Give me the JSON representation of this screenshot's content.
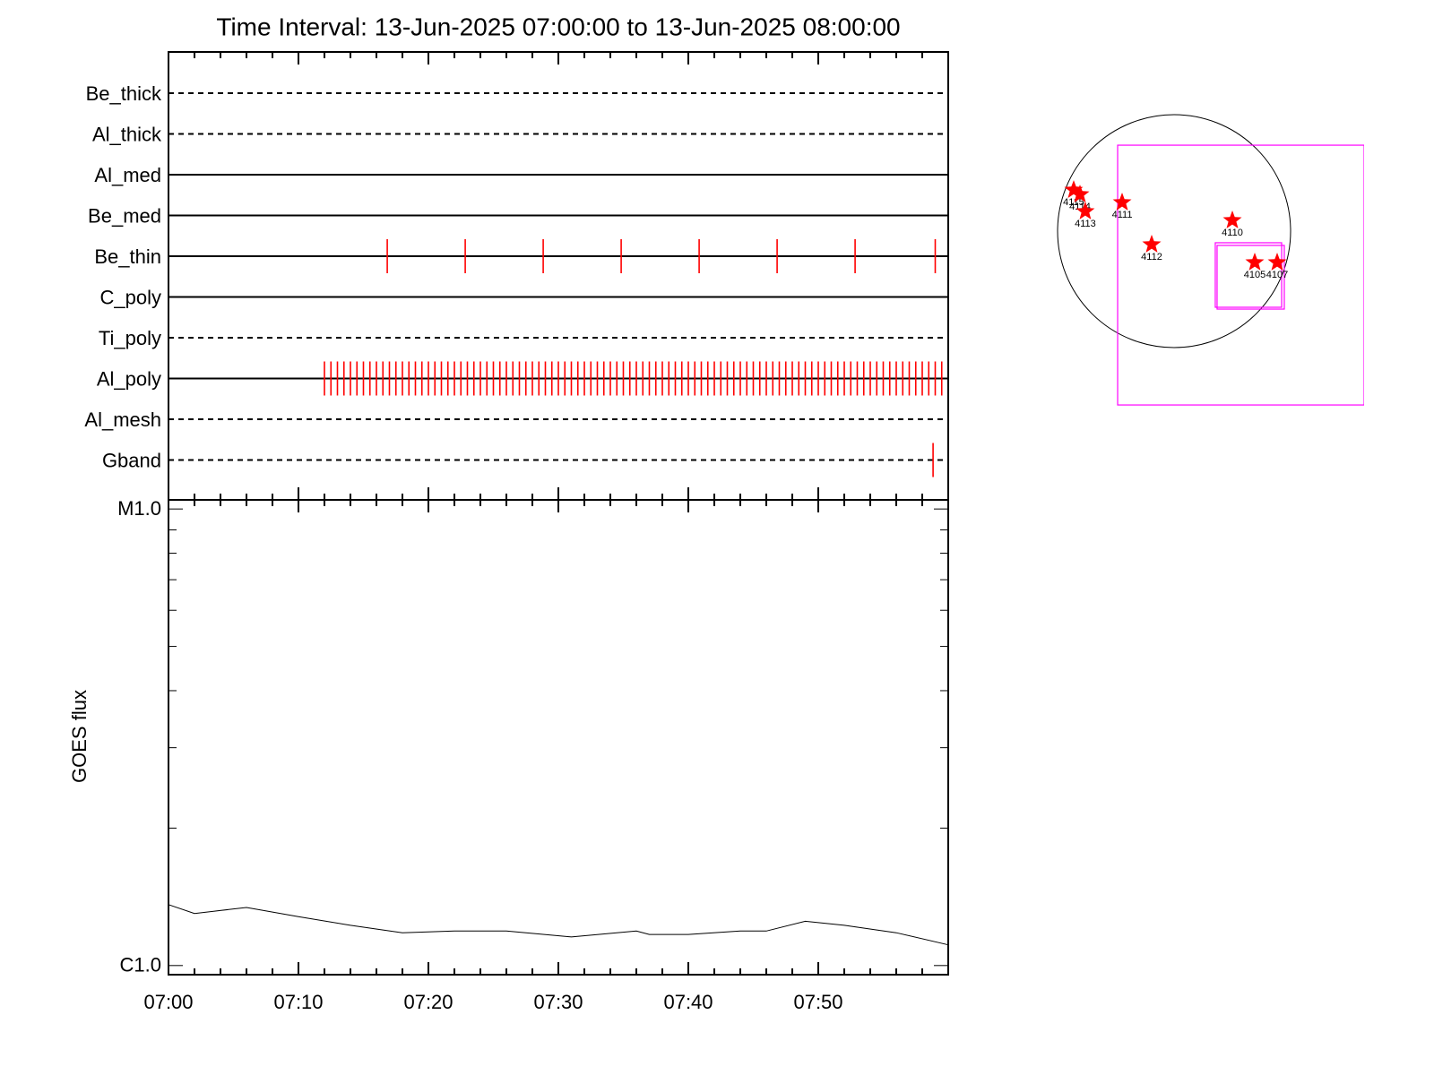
{
  "chart_data": [
    {
      "type": "events",
      "title": "Time Interval: 13-Jun-2025 07:00:00 to 13-Jun-2025 08:00:00",
      "xlim": [
        "07:00",
        "08:00"
      ],
      "event_color": "#ff0000",
      "rows": [
        {
          "name": "Be_thick",
          "style": "dashed",
          "times": []
        },
        {
          "name": "Al_thick",
          "style": "dashed",
          "times": []
        },
        {
          "name": "Al_med",
          "style": "solid",
          "times": []
        },
        {
          "name": "Be_med",
          "style": "solid",
          "times": []
        },
        {
          "name": "Be_thin",
          "style": "solid",
          "times": [
            "07:16:50",
            "07:22:50",
            "07:28:50",
            "07:34:50",
            "07:40:50",
            "07:46:50",
            "07:52:50",
            "07:59:00"
          ]
        },
        {
          "name": "C_poly",
          "style": "solid",
          "times": []
        },
        {
          "name": "Ti_poly",
          "style": "dashed",
          "times": []
        },
        {
          "name": "Al_poly",
          "style": "solid",
          "times": [
            "07:12:00",
            "07:12:30",
            "07:13:00",
            "07:13:30",
            "07:14:00",
            "07:14:30",
            "07:15:00",
            "07:15:30",
            "07:16:00",
            "07:16:30",
            "07:17:00",
            "07:17:30",
            "07:18:00",
            "07:18:30",
            "07:19:00",
            "07:19:30",
            "07:20:00",
            "07:20:30",
            "07:21:00",
            "07:21:30",
            "07:22:00",
            "07:22:30",
            "07:23:00",
            "07:23:30",
            "07:24:00",
            "07:24:30",
            "07:25:00",
            "07:25:30",
            "07:26:00",
            "07:26:30",
            "07:27:00",
            "07:27:30",
            "07:28:00",
            "07:28:30",
            "07:29:00",
            "07:29:30",
            "07:30:00",
            "07:30:30",
            "07:31:00",
            "07:31:30",
            "07:32:00",
            "07:32:30",
            "07:33:00",
            "07:33:30",
            "07:34:00",
            "07:34:30",
            "07:35:00",
            "07:35:30",
            "07:36:00",
            "07:36:30",
            "07:37:00",
            "07:37:30",
            "07:38:00",
            "07:38:30",
            "07:39:00",
            "07:39:30",
            "07:40:00",
            "07:40:30",
            "07:41:00",
            "07:41:30",
            "07:42:00",
            "07:42:30",
            "07:43:00",
            "07:43:30",
            "07:44:00",
            "07:44:30",
            "07:45:00",
            "07:45:30",
            "07:46:00",
            "07:46:30",
            "07:47:00",
            "07:47:30",
            "07:48:00",
            "07:48:30",
            "07:49:00",
            "07:49:30",
            "07:50:00",
            "07:50:30",
            "07:51:00",
            "07:51:30",
            "07:52:00",
            "07:52:30",
            "07:53:00",
            "07:53:30",
            "07:54:00",
            "07:54:30",
            "07:55:00",
            "07:55:30",
            "07:56:00",
            "07:56:30",
            "07:57:00",
            "07:57:30",
            "07:58:00",
            "07:58:30",
            "07:59:00",
            "07:59:30"
          ]
        },
        {
          "name": "Al_mesh",
          "style": "dashed",
          "times": []
        },
        {
          "name": "Gband",
          "style": "dashed",
          "times": [
            "07:58:50"
          ]
        }
      ]
    },
    {
      "type": "line",
      "y_label": "GOES flux",
      "log_y": true,
      "color": "#000000",
      "xlim": [
        "07:00",
        "08:00"
      ],
      "xticks": [
        "07:00",
        "07:10",
        "07:20",
        "07:30",
        "07:40",
        "07:50"
      ],
      "xminor_ticks": [
        "07:02",
        "07:04",
        "07:06",
        "07:08",
        "07:12",
        "07:14",
        "07:16",
        "07:18",
        "07:22",
        "07:24",
        "07:26",
        "07:28",
        "07:32",
        "07:34",
        "07:36",
        "07:38",
        "07:42",
        "07:44",
        "07:46",
        "07:48",
        "07:52",
        "07:54",
        "07:56",
        "07:58"
      ],
      "ylim": [
        9.55e-07,
        1.047e-05
      ],
      "yticks": [
        {
          "value": 1e-06,
          "label": "C1.0"
        },
        {
          "value": 1e-05,
          "label": "M1.0"
        }
      ],
      "yminor_ticks": [
        2e-06,
        3e-06,
        4e-06,
        5e-06,
        6e-06,
        7e-06,
        8e-06,
        9e-06
      ],
      "x": [
        "07:00",
        "07:02",
        "07:06",
        "07:10",
        "07:14",
        "07:18",
        "07:22",
        "07:26",
        "07:31",
        "07:36",
        "07:37",
        "07:40",
        "07:44",
        "07:46",
        "07:49",
        "07:52",
        "07:56",
        "08:00"
      ],
      "values": [
        1.36e-06,
        1.3e-06,
        1.34e-06,
        1.28e-06,
        1.225e-06,
        1.18e-06,
        1.19e-06,
        1.19e-06,
        1.155e-06,
        1.19e-06,
        1.17e-06,
        1.17e-06,
        1.19e-06,
        1.19e-06,
        1.25e-06,
        1.225e-06,
        1.18e-06,
        1.11e-06
      ]
    }
  ],
  "map": {
    "star_color": "#ff0000",
    "fov_color": "#ff00ff",
    "regions": [
      {
        "label": "4115",
        "x": -829,
        "y": 340
      },
      {
        "label": "4114",
        "x": -777,
        "y": 303
      },
      {
        "label": "4113",
        "x": -733,
        "y": 163
      },
      {
        "label": "4111",
        "x": -429,
        "y": 237
      },
      {
        "label": "4112",
        "x": -185,
        "y": -111
      },
      {
        "label": "4110",
        "x": 481,
        "y": 89
      },
      {
        "label": "4105",
        "x": 666,
        "y": -259
      },
      {
        "label": "4107",
        "x": 851,
        "y": -259
      }
    ],
    "fov": [
      {
        "x": [
          -466,
          1569
        ],
        "y": [
          710,
          -1436
        ]
      },
      {
        "x": [
          340,
          888
        ],
        "y": [
          -96,
          -629
        ]
      },
      {
        "x": [
          355,
          910
        ],
        "y": [
          -118,
          -644
        ]
      }
    ]
  }
}
